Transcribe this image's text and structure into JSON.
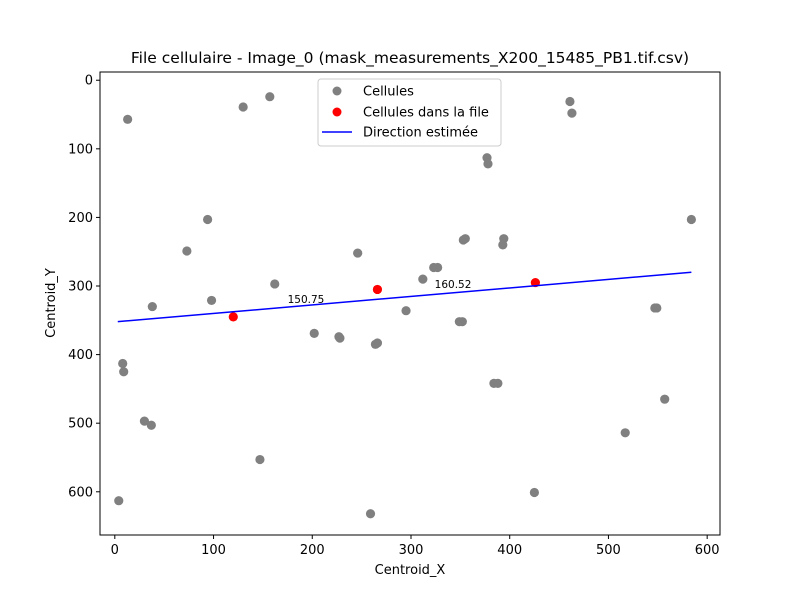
{
  "chart_data": {
    "type": "scatter",
    "title": "File cellulaire - Image_0 (mask_measurements_X200_15485_PB1.tif.csv)",
    "xlabel": "Centroid_X",
    "ylabel": "Centroid_Y",
    "xlim": [
      -15,
      613
    ],
    "ylim": [
      663,
      -12
    ],
    "y_inverted": true,
    "xticks": [
      0,
      100,
      200,
      300,
      400,
      500,
      600
    ],
    "yticks": [
      0,
      100,
      200,
      300,
      400,
      500,
      600
    ],
    "grid": false,
    "legend_position": "upper-center",
    "series": [
      {
        "name": "Cellules",
        "kind": "scatter",
        "color": "#808080",
        "points": [
          [
            13,
            57
          ],
          [
            130,
            39
          ],
          [
            157,
            24
          ],
          [
            461,
            31
          ],
          [
            463,
            48
          ],
          [
            377,
            113
          ],
          [
            378,
            122
          ],
          [
            94,
            203
          ],
          [
            584,
            203
          ],
          [
            73,
            249
          ],
          [
            246,
            252
          ],
          [
            353,
            233
          ],
          [
            355,
            231
          ],
          [
            393,
            240
          ],
          [
            394,
            231
          ],
          [
            162,
            297
          ],
          [
            312,
            290
          ],
          [
            323,
            273
          ],
          [
            327,
            273
          ],
          [
            38,
            330
          ],
          [
            98,
            321
          ],
          [
            295,
            336
          ],
          [
            349,
            352
          ],
          [
            352,
            352
          ],
          [
            547,
            332
          ],
          [
            549,
            332
          ],
          [
            202,
            369
          ],
          [
            227,
            374
          ],
          [
            228,
            376
          ],
          [
            264,
            385
          ],
          [
            266,
            383
          ],
          [
            8,
            413
          ],
          [
            9,
            425
          ],
          [
            384,
            442
          ],
          [
            388,
            442
          ],
          [
            557,
            465
          ],
          [
            30,
            497
          ],
          [
            37,
            503
          ],
          [
            517,
            514
          ],
          [
            147,
            553
          ],
          [
            4,
            613
          ],
          [
            425,
            601
          ],
          [
            259,
            632
          ]
        ]
      },
      {
        "name": "Cellules dans la file",
        "kind": "scatter",
        "color": "#ff0000",
        "points": [
          [
            120,
            345
          ],
          [
            266,
            305
          ],
          [
            426,
            295
          ]
        ]
      },
      {
        "name": "Direction estimée",
        "kind": "line",
        "color": "#0000ff",
        "points": [
          [
            3,
            352
          ],
          [
            584,
            280
          ]
        ]
      }
    ],
    "annotations": [
      {
        "text": "150.75",
        "x": 175,
        "y": 325
      },
      {
        "text": "160.52",
        "x": 324,
        "y": 303
      }
    ]
  }
}
